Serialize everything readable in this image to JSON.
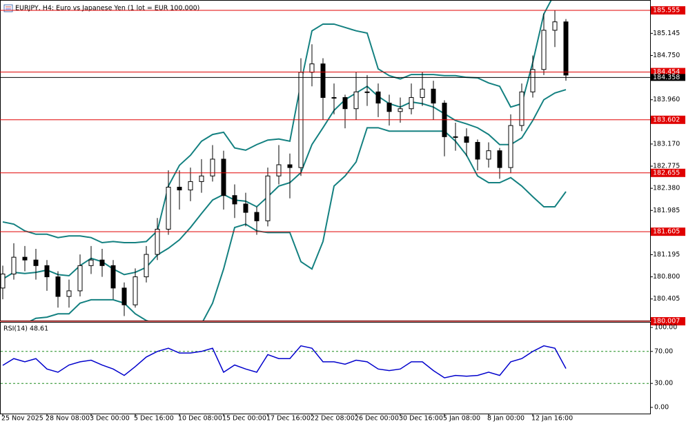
{
  "chart_data": [
    {
      "type": "candlestick",
      "title": "EURJPY, H4:  Euro vs Japanese Yen (1 lot = EUR 100,000)",
      "categories": [
        "25 Nov 2025",
        null,
        null,
        null,
        "28 Nov 08:00",
        null,
        null,
        null,
        "3 Dec 00:00",
        null,
        null,
        null,
        "5 Dec 16:00",
        null,
        null,
        null,
        "10 Dec 08:00",
        null,
        null,
        null,
        "15 Dec 00:00",
        null,
        null,
        null,
        "17 Dec 16:00",
        null,
        null,
        null,
        "22 Dec 08:00",
        null,
        null,
        null,
        "26 Dec 00:00",
        null,
        null,
        null,
        "30 Dec 16:00",
        null,
        null,
        null,
        "5 Jan 08:00",
        null,
        null,
        null,
        "8 Jan 00:00",
        null,
        null,
        null,
        "12 Jan 16:00",
        null,
        null,
        null
      ],
      "open": [
        180.6,
        180.85,
        181.15,
        181.1,
        181.0,
        180.8,
        180.45,
        180.55,
        181.0,
        181.1,
        181.0,
        180.6,
        180.3,
        180.8,
        181.2,
        181.65,
        182.4,
        182.35,
        182.5,
        182.6,
        182.9,
        182.25,
        182.1,
        181.95,
        181.8,
        182.6,
        182.8,
        182.75,
        184.45,
        184.6,
        184.0,
        184.0,
        183.8,
        184.1,
        184.1,
        183.9,
        183.75,
        183.8,
        184.0,
        184.15,
        183.9,
        183.3,
        183.3,
        183.2,
        182.9,
        183.05,
        182.75,
        183.5,
        184.1,
        184.5,
        185.2,
        185.35
      ],
      "high": [
        181.0,
        181.4,
        181.35,
        181.3,
        181.1,
        180.9,
        180.75,
        181.2,
        181.35,
        181.3,
        181.1,
        180.7,
        180.95,
        181.35,
        181.85,
        182.7,
        182.7,
        182.75,
        182.9,
        183.15,
        183.05,
        182.45,
        182.3,
        182.05,
        182.75,
        183.15,
        183.0,
        184.7,
        184.95,
        184.7,
        184.25,
        184.05,
        184.45,
        184.4,
        184.25,
        184.05,
        184.0,
        184.25,
        184.45,
        184.3,
        183.95,
        183.55,
        183.45,
        183.25,
        183.2,
        183.1,
        183.7,
        184.25,
        184.75,
        185.5,
        185.55,
        185.4
      ],
      "low": [
        180.4,
        180.75,
        180.9,
        180.75,
        180.55,
        180.25,
        180.25,
        180.45,
        180.85,
        180.8,
        180.4,
        180.1,
        180.25,
        180.7,
        181.1,
        181.55,
        182.0,
        182.15,
        182.3,
        182.5,
        182.0,
        181.85,
        181.7,
        181.55,
        181.7,
        182.45,
        182.2,
        182.6,
        184.2,
        183.6,
        183.7,
        183.45,
        183.6,
        183.85,
        183.65,
        183.5,
        183.55,
        183.7,
        183.85,
        183.6,
        182.95,
        183.05,
        182.95,
        182.7,
        182.75,
        182.55,
        182.65,
        183.4,
        184.0,
        184.4,
        184.9,
        184.3
      ],
      "close": [
        180.85,
        181.15,
        181.1,
        181.0,
        180.8,
        180.45,
        180.55,
        181.0,
        181.1,
        181.0,
        180.6,
        180.3,
        180.8,
        181.2,
        181.65,
        182.4,
        182.35,
        182.5,
        182.6,
        182.9,
        182.25,
        182.1,
        181.95,
        181.8,
        182.6,
        182.8,
        182.75,
        184.45,
        184.6,
        184.0,
        184.0,
        183.8,
        184.1,
        184.1,
        183.9,
        183.75,
        183.8,
        184.0,
        184.15,
        183.9,
        183.3,
        183.3,
        183.2,
        182.9,
        183.05,
        182.75,
        183.5,
        184.1,
        184.5,
        185.2,
        185.35,
        184.4
      ],
      "up_color": "#ffffff",
      "down_color": "#000000",
      "bands": {
        "color": "#138080",
        "upper": [
          181.78,
          181.74,
          181.62,
          181.56,
          181.56,
          181.5,
          181.53,
          181.53,
          181.5,
          181.41,
          181.43,
          181.41,
          181.41,
          181.43,
          181.62,
          182.42,
          182.79,
          182.97,
          183.22,
          183.34,
          183.38,
          183.1,
          183.06,
          183.16,
          183.24,
          183.26,
          183.22,
          184.26,
          185.19,
          185.31,
          185.31,
          185.25,
          185.19,
          185.15,
          184.51,
          184.39,
          184.33,
          184.41,
          184.41,
          184.41,
          184.39,
          184.39,
          184.36,
          184.35,
          184.26,
          184.2,
          183.83,
          183.89,
          184.63,
          185.49,
          185.86,
          185.99
        ],
        "middle": [
          180.76,
          180.88,
          180.86,
          180.88,
          180.92,
          180.84,
          180.82,
          181.0,
          181.13,
          181.07,
          180.94,
          180.84,
          180.88,
          180.97,
          181.19,
          181.31,
          181.46,
          181.68,
          181.93,
          182.17,
          182.27,
          182.17,
          182.15,
          182.05,
          182.23,
          182.42,
          182.48,
          182.66,
          183.16,
          183.46,
          183.77,
          183.96,
          184.08,
          184.2,
          184.02,
          183.89,
          183.83,
          183.92,
          183.89,
          183.83,
          183.71,
          183.59,
          183.53,
          183.46,
          183.34,
          183.16,
          183.16,
          183.28,
          183.59,
          183.96,
          184.08,
          184.14
        ],
        "lower": [
          179.96,
          179.96,
          179.96,
          180.06,
          180.08,
          180.14,
          180.14,
          180.33,
          180.39,
          180.39,
          180.39,
          180.33,
          180.14,
          180.02,
          179.96,
          179.84,
          179.84,
          179.84,
          179.96,
          180.33,
          180.94,
          181.68,
          181.74,
          181.62,
          181.59,
          181.59,
          181.59,
          181.07,
          180.94,
          181.43,
          182.42,
          182.6,
          182.85,
          183.46,
          183.46,
          183.4,
          183.4,
          183.4,
          183.4,
          183.4,
          183.4,
          183.22,
          182.97,
          182.6,
          182.48,
          182.48,
          182.57,
          182.42,
          182.23,
          182.05,
          182.05,
          182.32
        ]
      },
      "ylim": [
        180.02,
        185.74
      ],
      "yticks": [
        185.145,
        {
          "value": 184.75,
          "label": "184.750"
        },
        {
          "value": 183.96,
          "label": "183.960"
        },
        {
          "value": 183.17,
          "label": "183.170"
        },
        182.775,
        {
          "value": 182.38,
          "label": "182.380"
        },
        181.985,
        181.195,
        {
          "value": 180.8,
          "label": "180.800"
        },
        180.405
      ],
      "levels": [
        185.555,
        184.454,
        183.602,
        182.655,
        181.605,
        180.007
      ],
      "level_color": "#e00000",
      "current_price": 184.358
    },
    {
      "type": "line",
      "title": "RSI(14) 48.61",
      "values": [
        52.6,
        61,
        57,
        61,
        48,
        44,
        53,
        57,
        59,
        53,
        48,
        40,
        51,
        63,
        70,
        74,
        68,
        68,
        70,
        74,
        44,
        53,
        48,
        44,
        66,
        61,
        61,
        77,
        74,
        57,
        57,
        54,
        59,
        57,
        48,
        46,
        48,
        57,
        57,
        46,
        37,
        40,
        39,
        40,
        44,
        40,
        57,
        61,
        70,
        77,
        74,
        48.61
      ],
      "color": "#0000cc",
      "ylim": [
        0,
        100
      ],
      "yticks": [
        {
          "value": 100,
          "label": "100.00"
        },
        {
          "value": 70,
          "label": "70.00"
        },
        {
          "value": 30,
          "label": "30.00"
        },
        {
          "value": 0,
          "label": "0.00"
        }
      ],
      "levels": [
        70,
        30
      ],
      "level_color": "#1a8a1a"
    }
  ]
}
